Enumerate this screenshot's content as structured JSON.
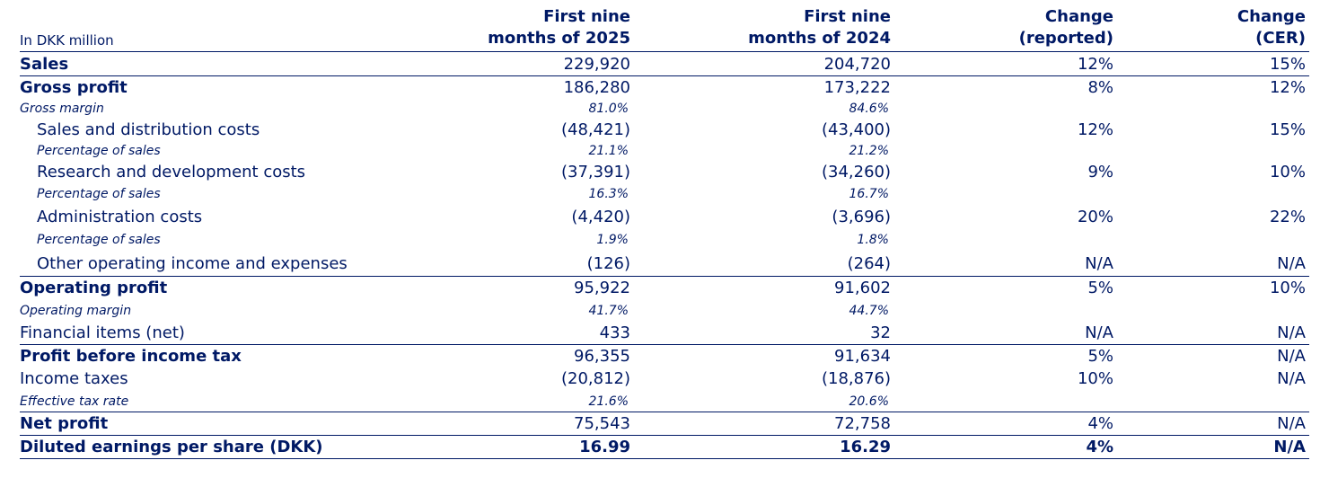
{
  "header": {
    "unit": "In DKK million",
    "col1": [
      "First nine",
      "months of 2025"
    ],
    "col2": [
      "First nine",
      "months of 2024"
    ],
    "col3": [
      "Change",
      "(reported)"
    ],
    "col4": [
      "Change",
      "(CER)"
    ]
  },
  "rows": [
    {
      "label": "Sales",
      "c1": "229,920",
      "c2": "204,720",
      "c3": "12%",
      "c4": "15%"
    },
    {
      "label": "Gross profit",
      "c1": "186,280",
      "c2": "173,222",
      "c3": "8%",
      "c4": "12%"
    },
    {
      "label": "Gross margin",
      "c1": "81.0%",
      "c2": "84.6%",
      "c3": "",
      "c4": ""
    },
    {
      "label": "Sales and distribution costs",
      "c1": "(48,421)",
      "c2": "(43,400)",
      "c3": "12%",
      "c4": "15%"
    },
    {
      "label": "Percentage of sales",
      "c1": "21.1%",
      "c2": "21.2%",
      "c3": "",
      "c4": ""
    },
    {
      "label": "Research and development costs",
      "c1": "(37,391)",
      "c2": "(34,260)",
      "c3": "9%",
      "c4": "10%"
    },
    {
      "label": "Percentage of sales",
      "c1": "16.3%",
      "c2": "16.7%",
      "c3": "",
      "c4": ""
    },
    {
      "label": "Administration costs",
      "c1": "(4,420)",
      "c2": "(3,696)",
      "c3": "20%",
      "c4": "22%"
    },
    {
      "label": "Percentage of sales",
      "c1": "1.9%",
      "c2": "1.8%",
      "c3": "",
      "c4": ""
    },
    {
      "label": "Other operating income and expenses",
      "c1": "(126)",
      "c2": "(264)",
      "c3": "N/A",
      "c4": "N/A"
    },
    {
      "label": "Operating profit",
      "c1": "95,922",
      "c2": "91,602",
      "c3": "5%",
      "c4": "10%"
    },
    {
      "label": "Operating margin",
      "c1": "41.7%",
      "c2": "44.7%",
      "c3": "",
      "c4": ""
    },
    {
      "label": "Financial items (net)",
      "c1": "433",
      "c2": "32",
      "c3": "N/A",
      "c4": "N/A"
    },
    {
      "label": "Profit before income tax",
      "c1": "96,355",
      "c2": "91,634",
      "c3": "5%",
      "c4": "N/A"
    },
    {
      "label": "Income taxes",
      "c1": "(20,812)",
      "c2": "(18,876)",
      "c3": "10%",
      "c4": "N/A"
    },
    {
      "label": "Effective tax rate",
      "c1": "21.6%",
      "c2": "20.6%",
      "c3": "",
      "c4": ""
    },
    {
      "label": "Net profit",
      "c1": "75,543",
      "c2": "72,758",
      "c3": "4%",
      "c4": "N/A"
    },
    {
      "label": "Diluted earnings per share (DKK)",
      "c1": "16.99",
      "c2": "16.29",
      "c3": "4%",
      "c4": "N/A"
    }
  ]
}
